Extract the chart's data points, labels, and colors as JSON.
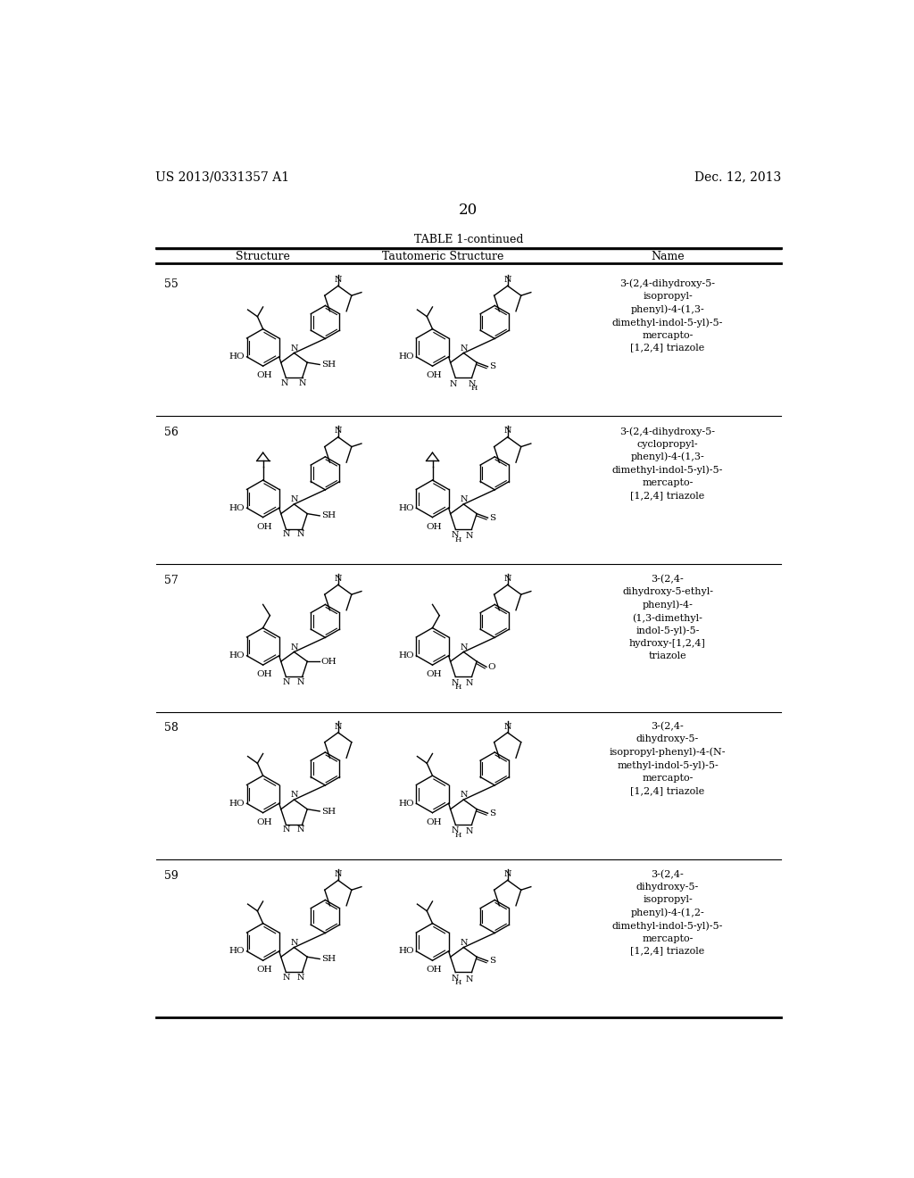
{
  "background_color": "#ffffff",
  "page_number": "20",
  "header_left": "US 2013/0331357 A1",
  "header_right": "Dec. 12, 2013",
  "table_title": "TABLE 1-continued",
  "col_headers": [
    "Structure",
    "Tautomeric Structure",
    "Name"
  ],
  "rows": [
    {
      "number": "55",
      "substituent": "isopropyl",
      "indole_type": "1,3-dimethyl",
      "terminal": "SH",
      "name": "3-(2,4-dihydroxy-5-\nisopropyl-\nphenyl)-4-(1,3-\ndimethyl-indol-5-yl)-5-\nmercapto-\n[1,2,4] triazole"
    },
    {
      "number": "56",
      "substituent": "cyclopropyl",
      "indole_type": "1,3-dimethyl",
      "terminal": "SH",
      "name": "3-(2,4-dihydroxy-5-\ncyclopropyl-\nphenyl)-4-(1,3-\ndimethyl-indol-5-yl)-5-\nmercapto-\n[1,2,4] triazole"
    },
    {
      "number": "57",
      "substituent": "ethyl",
      "indole_type": "1,3-dimethyl",
      "terminal": "OH",
      "name": "3-(2,4-\ndihydroxy-5-ethyl-\nphenyl)-4-\n(1,3-dimethyl-\nindol-5-yl)-5-\nhydroxy-[1,2,4]\ntriazole"
    },
    {
      "number": "58",
      "substituent": "isopropyl",
      "indole_type": "N-methyl",
      "terminal": "SH",
      "name": "3-(2,4-\ndihydroxy-5-\nisopropyl-phenyl)-4-(N-\nmethyl-indol-5-yl)-5-\nmercapto-\n[1,2,4] triazole"
    },
    {
      "number": "59",
      "substituent": "isopropyl",
      "indole_type": "1,2-dimethyl",
      "terminal": "SH",
      "name": "3-(2,4-\ndihydroxy-5-\nisopropyl-\nphenyl)-4-(1,2-\ndimethyl-indol-5-yl)-5-\nmercapto-\n[1,2,4] triazole"
    }
  ]
}
